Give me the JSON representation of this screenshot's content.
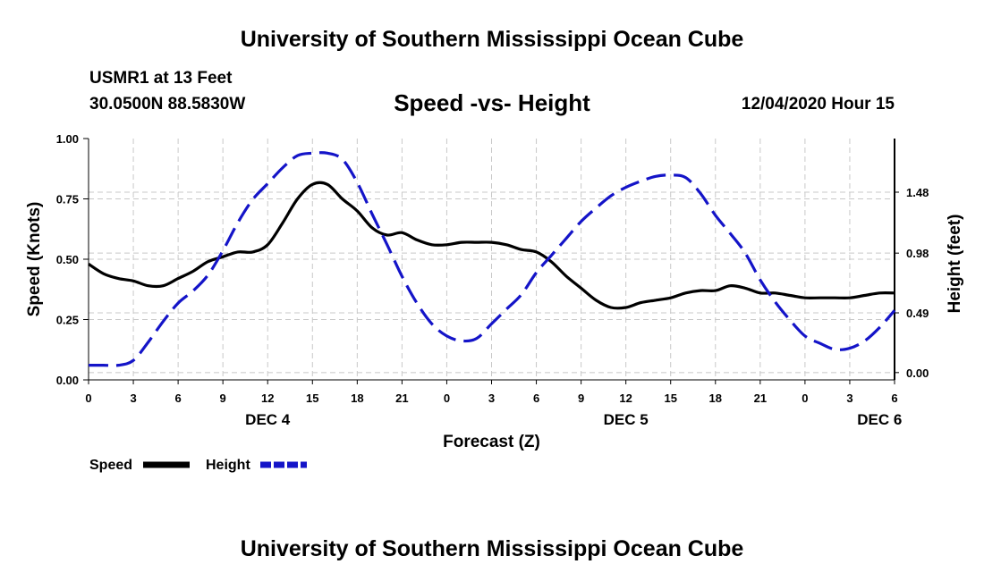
{
  "header": {
    "org_title": "University of Southern Mississippi Ocean Cube",
    "station": "USMR1 at 13 Feet",
    "coords": "30.0500N 88.5830W",
    "datetime": "12/04/2020 Hour 15"
  },
  "footer": {
    "org_title": "University of Southern Mississippi Ocean Cube"
  },
  "chart_data": {
    "type": "line",
    "title": "Speed -vs- Height",
    "xlabel": "Forecast (Z)",
    "ylabel": "Speed (Knots)",
    "y2label": "Height (feet)",
    "xlim": [
      0,
      54
    ],
    "ylim": [
      0,
      1.0
    ],
    "y2lim": [
      -0.06,
      1.92
    ],
    "x_ticks": [
      0,
      3,
      6,
      9,
      12,
      15,
      18,
      21,
      24,
      27,
      30,
      33,
      36,
      39,
      42,
      45,
      48,
      51,
      54
    ],
    "x_tick_labels": [
      "0",
      "3",
      "6",
      "9",
      "12",
      "15",
      "18",
      "21",
      "0",
      "3",
      "6",
      "9",
      "12",
      "15",
      "18",
      "21",
      "0",
      "3",
      "6"
    ],
    "y_ticks": [
      0,
      0.25,
      0.5,
      0.75,
      1.0
    ],
    "y_tick_labels": [
      "0.00",
      "0.25",
      "0.50",
      "0.75",
      "1.00"
    ],
    "y2_ticks": [
      0,
      0.49,
      0.98,
      1.48
    ],
    "y2_tick_labels": [
      "0.00",
      "0.49",
      "0.98",
      "1.48"
    ],
    "day_labels": [
      {
        "x": 12,
        "label": "DEC 4"
      },
      {
        "x": 36,
        "label": "DEC 5"
      },
      {
        "x": 53,
        "label": "DEC 6"
      }
    ],
    "grid": true,
    "legend_position": "bottom-left",
    "colors": {
      "speed": "#000000",
      "height": "#1414c8",
      "grid": "#c8c8c8"
    },
    "series": [
      {
        "name": "Speed",
        "axis": "left",
        "style": "solid",
        "x": [
          0,
          1,
          2,
          3,
          4,
          5,
          6,
          7,
          8,
          9,
          10,
          11,
          12,
          13,
          14,
          15,
          16,
          17,
          18,
          19,
          20,
          21,
          22,
          23,
          24,
          25,
          26,
          27,
          28,
          29,
          30,
          31,
          32,
          33,
          34,
          35,
          36,
          37,
          38,
          39,
          40,
          41,
          42,
          43,
          44,
          45,
          46,
          47,
          48,
          49,
          50,
          51,
          52,
          53,
          54
        ],
        "values": [
          0.48,
          0.44,
          0.42,
          0.41,
          0.39,
          0.39,
          0.42,
          0.45,
          0.49,
          0.51,
          0.53,
          0.53,
          0.56,
          0.65,
          0.75,
          0.81,
          0.81,
          0.75,
          0.7,
          0.63,
          0.6,
          0.61,
          0.58,
          0.56,
          0.56,
          0.57,
          0.57,
          0.57,
          0.56,
          0.54,
          0.53,
          0.49,
          0.43,
          0.38,
          0.33,
          0.3,
          0.3,
          0.32,
          0.33,
          0.34,
          0.36,
          0.37,
          0.37,
          0.39,
          0.38,
          0.36,
          0.36,
          0.35,
          0.34,
          0.34,
          0.34,
          0.34,
          0.35,
          0.36,
          0.36
        ]
      },
      {
        "name": "Height",
        "axis": "right",
        "style": "dashed",
        "x": [
          0,
          1,
          2,
          3,
          4,
          5,
          6,
          7,
          8,
          9,
          10,
          11,
          12,
          13,
          14,
          15,
          16,
          17,
          18,
          19,
          20,
          21,
          22,
          23,
          24,
          25,
          26,
          27,
          28,
          29,
          30,
          31,
          32,
          33,
          34,
          35,
          36,
          37,
          38,
          39,
          40,
          41,
          42,
          43,
          44,
          45,
          46,
          47,
          48,
          49,
          50,
          51,
          52,
          53,
          54
        ],
        "values": [
          0.06,
          0.06,
          0.06,
          0.1,
          0.25,
          0.42,
          0.57,
          0.67,
          0.8,
          1.0,
          1.23,
          1.42,
          1.55,
          1.68,
          1.78,
          1.8,
          1.8,
          1.75,
          1.56,
          1.3,
          1.05,
          0.79,
          0.57,
          0.4,
          0.3,
          0.26,
          0.28,
          0.4,
          0.52,
          0.64,
          0.82,
          0.96,
          1.1,
          1.24,
          1.35,
          1.45,
          1.52,
          1.57,
          1.61,
          1.62,
          1.6,
          1.47,
          1.29,
          1.14,
          0.98,
          0.76,
          0.58,
          0.43,
          0.3,
          0.24,
          0.19,
          0.2,
          0.26,
          0.37,
          0.51
        ]
      }
    ]
  }
}
